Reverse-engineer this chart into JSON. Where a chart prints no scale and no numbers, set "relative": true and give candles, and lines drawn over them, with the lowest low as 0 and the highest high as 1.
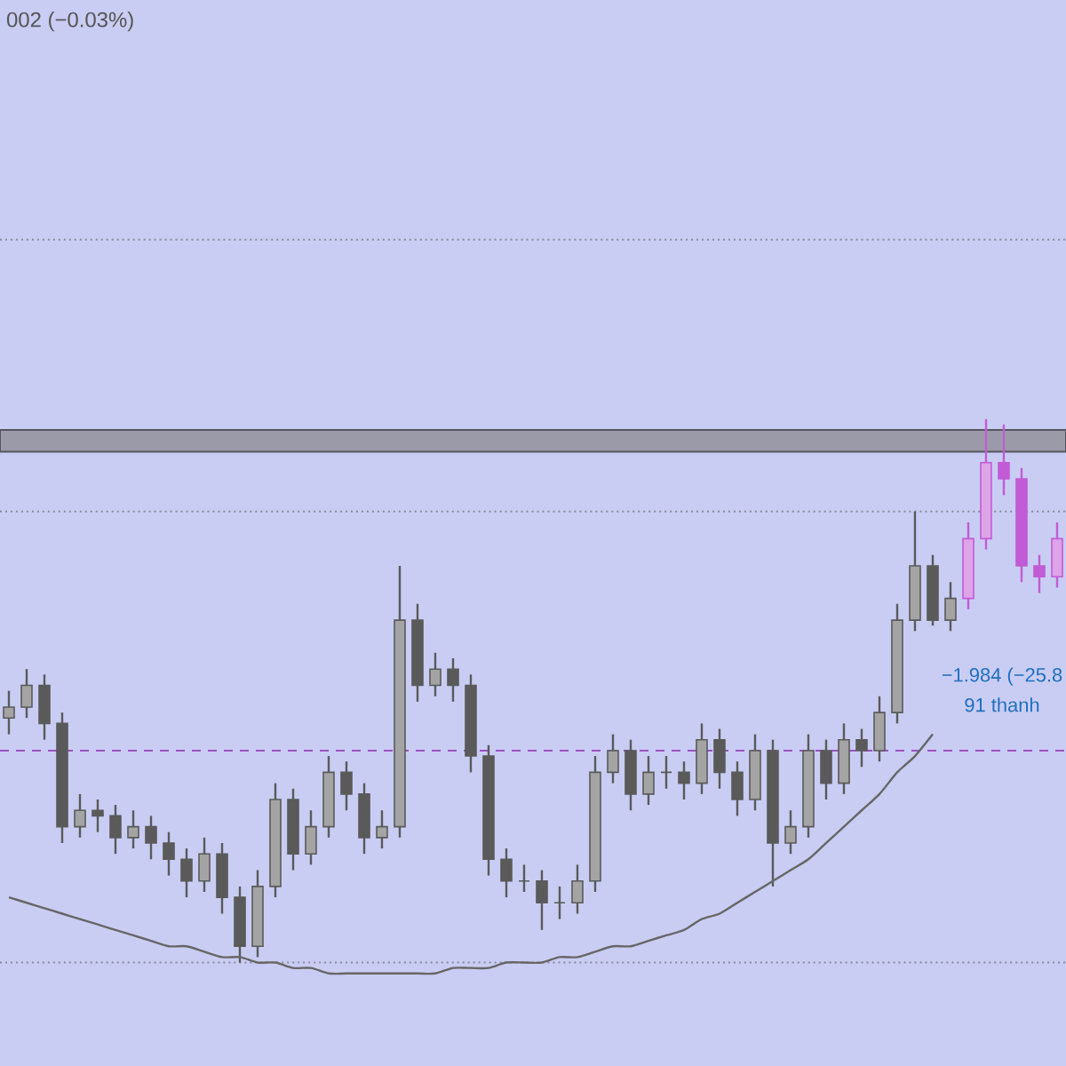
{
  "chart_data": {
    "type": "candlestick",
    "relative": true,
    "categories": [
      null,
      null,
      null,
      null,
      null,
      null,
      null,
      null,
      null,
      null,
      null,
      null,
      null,
      null,
      null,
      null,
      null,
      null,
      null,
      null,
      null,
      null,
      null,
      null,
      null,
      null,
      null,
      null,
      null,
      null,
      null,
      null,
      null,
      null,
      null,
      null,
      null,
      null,
      null,
      null,
      null,
      null,
      null,
      null,
      null,
      null,
      null,
      null,
      null,
      null,
      null,
      null,
      null,
      null,
      null,
      null,
      null,
      null,
      null,
      null
    ],
    "series": [
      {
        "ohlc": [
          [
            0.45,
            0.5,
            0.42,
            0.47
          ],
          [
            0.47,
            0.54,
            0.45,
            0.51
          ],
          [
            0.51,
            0.53,
            0.41,
            0.44
          ],
          [
            0.44,
            0.46,
            0.22,
            0.25
          ],
          [
            0.25,
            0.31,
            0.23,
            0.28
          ],
          [
            0.28,
            0.3,
            0.24,
            0.27
          ],
          [
            0.27,
            0.29,
            0.2,
            0.23
          ],
          [
            0.23,
            0.28,
            0.21,
            0.25
          ],
          [
            0.25,
            0.27,
            0.19,
            0.22
          ],
          [
            0.22,
            0.24,
            0.16,
            0.19
          ],
          [
            0.19,
            0.21,
            0.12,
            0.15
          ],
          [
            0.15,
            0.23,
            0.13,
            0.2
          ],
          [
            0.2,
            0.22,
            0.09,
            0.12
          ],
          [
            0.12,
            0.14,
            0.0,
            0.03
          ],
          [
            0.03,
            0.17,
            0.01,
            0.14
          ],
          [
            0.14,
            0.33,
            0.12,
            0.3
          ],
          [
            0.3,
            0.32,
            0.17,
            0.2
          ],
          [
            0.2,
            0.28,
            0.18,
            0.25
          ],
          [
            0.25,
            0.38,
            0.23,
            0.35
          ],
          [
            0.35,
            0.37,
            0.28,
            0.31
          ],
          [
            0.31,
            0.33,
            0.2,
            0.23
          ],
          [
            0.23,
            0.28,
            0.21,
            0.25
          ],
          [
            0.25,
            0.73,
            0.23,
            0.63
          ],
          [
            0.63,
            0.66,
            0.48,
            0.51
          ],
          [
            0.51,
            0.57,
            0.49,
            0.54
          ],
          [
            0.54,
            0.56,
            0.48,
            0.51
          ],
          [
            0.51,
            0.53,
            0.35,
            0.38
          ],
          [
            0.38,
            0.4,
            0.16,
            0.19
          ],
          [
            0.19,
            0.21,
            0.12,
            0.15
          ],
          [
            0.15,
            0.18,
            0.13,
            0.15
          ],
          [
            0.15,
            0.17,
            0.06,
            0.11
          ],
          [
            0.11,
            0.14,
            0.08,
            0.11
          ],
          [
            0.11,
            0.18,
            0.09,
            0.15
          ],
          [
            0.15,
            0.38,
            0.13,
            0.35
          ],
          [
            0.35,
            0.42,
            0.33,
            0.39
          ],
          [
            0.39,
            0.41,
            0.28,
            0.31
          ],
          [
            0.31,
            0.38,
            0.29,
            0.35
          ],
          [
            0.35,
            0.38,
            0.32,
            0.35
          ],
          [
            0.35,
            0.37,
            0.3,
            0.33
          ],
          [
            0.33,
            0.44,
            0.31,
            0.41
          ],
          [
            0.41,
            0.43,
            0.32,
            0.35
          ],
          [
            0.35,
            0.37,
            0.27,
            0.3
          ],
          [
            0.3,
            0.42,
            0.28,
            0.39
          ],
          [
            0.39,
            0.41,
            0.14,
            0.22
          ],
          [
            0.22,
            0.28,
            0.2,
            0.25
          ],
          [
            0.25,
            0.42,
            0.23,
            0.39
          ],
          [
            0.39,
            0.41,
            0.3,
            0.33
          ],
          [
            0.33,
            0.44,
            0.31,
            0.41
          ],
          [
            0.41,
            0.43,
            0.36,
            0.39
          ],
          [
            0.39,
            0.49,
            0.37,
            0.46
          ],
          [
            0.46,
            0.66,
            0.44,
            0.63
          ],
          [
            0.63,
            0.83,
            0.61,
            0.73
          ],
          [
            0.73,
            0.75,
            0.62,
            0.63
          ],
          [
            0.63,
            0.7,
            0.61,
            0.67
          ],
          [
            0.67,
            0.81,
            0.65,
            0.78
          ],
          [
            0.78,
            1.0,
            0.76,
            0.92
          ],
          [
            0.92,
            0.99,
            0.86,
            0.89
          ],
          [
            0.89,
            0.91,
            0.7,
            0.73
          ],
          [
            0.73,
            0.75,
            0.68,
            0.71
          ],
          [
            0.71,
            0.81,
            0.69,
            0.78
          ]
        ],
        "colors": [
          "#5a5a5a",
          "#5a5a5a",
          "#5a5a5a",
          "#5a5a5a",
          "#5a5a5a",
          "#5a5a5a",
          "#5a5a5a",
          "#5a5a5a",
          "#5a5a5a",
          "#5a5a5a",
          "#5a5a5a",
          "#5a5a5a",
          "#5a5a5a",
          "#5a5a5a",
          "#5a5a5a",
          "#5a5a5a",
          "#5a5a5a",
          "#5a5a5a",
          "#5a5a5a",
          "#5a5a5a",
          "#5a5a5a",
          "#5a5a5a",
          "#5a5a5a",
          "#5a5a5a",
          "#5a5a5a",
          "#5a5a5a",
          "#5a5a5a",
          "#5a5a5a",
          "#5a5a5a",
          "#5a5a5a",
          "#5a5a5a",
          "#5a5a5a",
          "#5a5a5a",
          "#5a5a5a",
          "#5a5a5a",
          "#5a5a5a",
          "#5a5a5a",
          "#5a5a5a",
          "#5a5a5a",
          "#5a5a5a",
          "#5a5a5a",
          "#5a5a5a",
          "#5a5a5a",
          "#5a5a5a",
          "#5a5a5a",
          "#5a5a5a",
          "#5a5a5a",
          "#5a5a5a",
          "#5a5a5a",
          "#5a5a5a",
          "#5a5a5a",
          "#5a5a5a",
          "#5a5a5a",
          "#5a5a5a",
          "#c25bd6",
          "#c25bd6",
          "#c25bd6",
          "#c25bd6",
          "#c25bd6",
          "#c25bd6"
        ]
      },
      {
        "type": "line",
        "color": "#666666",
        "values": [
          0.12,
          0.11,
          0.1,
          0.09,
          0.08,
          0.07,
          0.06,
          0.05,
          0.04,
          0.03,
          0.03,
          0.02,
          0.01,
          0.01,
          0.0,
          0.0,
          -0.01,
          -0.01,
          -0.02,
          -0.02,
          -0.02,
          -0.02,
          -0.02,
          -0.02,
          -0.02,
          -0.01,
          -0.01,
          -0.01,
          0.0,
          0.0,
          0.0,
          0.01,
          0.01,
          0.02,
          0.03,
          0.03,
          0.04,
          0.05,
          0.06,
          0.08,
          0.09,
          0.11,
          0.13,
          0.15,
          0.17,
          0.19,
          0.22,
          0.25,
          0.28,
          0.31,
          0.35,
          0.38,
          0.42,
          null,
          null,
          null,
          null,
          null,
          null,
          null
        ]
      }
    ],
    "ref_lines": [
      {
        "axis": "y",
        "value": 1.33,
        "color": "#8a8a9a",
        "line_style": "dotted"
      },
      {
        "axis": "y",
        "value": 0.83,
        "color": "#8a8a9a",
        "line_style": "dotted"
      },
      {
        "axis": "y",
        "value": 0.0,
        "color": "#8a8a9a",
        "line_style": "dotted"
      },
      {
        "axis": "y",
        "value": 0.39,
        "color": "#9c4fc4",
        "line_style": "dashed"
      }
    ],
    "bands": [
      {
        "axis": "y",
        "from": 0.94,
        "to": 0.98,
        "color": "#9a9aa8"
      }
    ],
    "annotations": [
      "002 (−0.03%)",
      "−1.984 (−25.8",
      "91 thanh"
    ]
  }
}
